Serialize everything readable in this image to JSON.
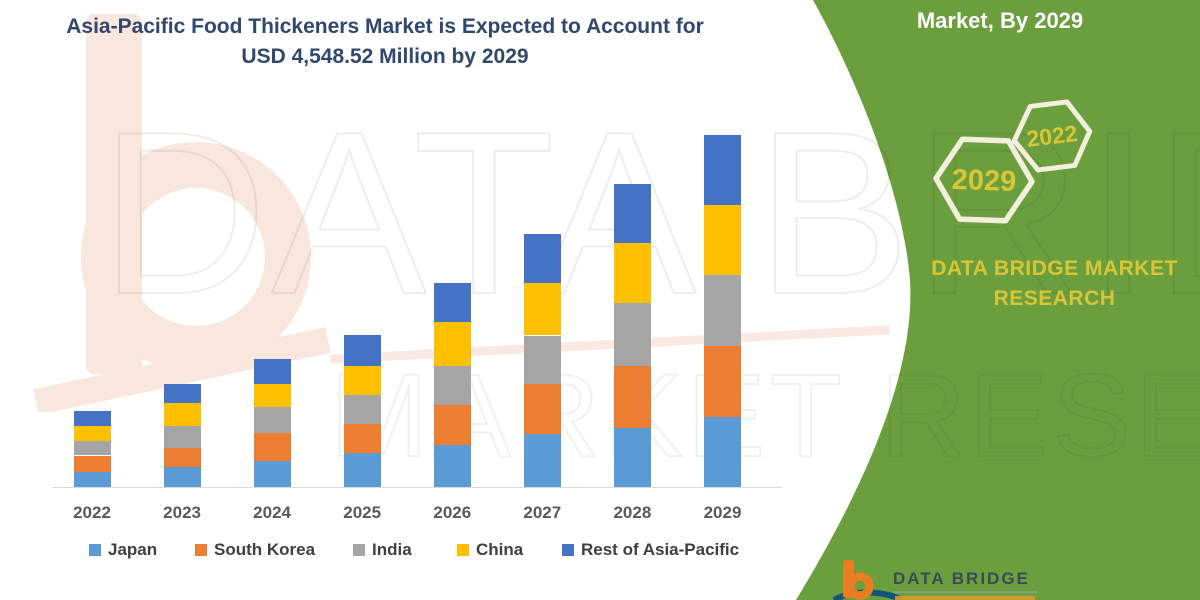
{
  "title": {
    "line1": "Asia-Pacific Food Thickeners Market is Expected to Account for",
    "line2": "USD 4,548.52 Million by 2029",
    "color": "#2F486B"
  },
  "right_panel": {
    "background_color": "#6B9F3D",
    "heading": "Market, By 2029",
    "hexagons": [
      {
        "label": "2029"
      },
      {
        "label": "2022"
      }
    ],
    "brand_line1": "DATA BRIDGE MARKET",
    "brand_line2": "RESEARCH",
    "accent_text_color": "#D9C637",
    "hex_outline_color": "#F2EFDC"
  },
  "watermark": {
    "line1": "DATA BRIDGE",
    "line2": "MARKET RESEARCH"
  },
  "footer_logo": {
    "brand": "DATA BRIDGE",
    "orange": "#E87E22",
    "navy": "#3A4A56"
  },
  "chart_data": {
    "type": "bar",
    "stacked": true,
    "title": "Asia-Pacific Food Thickeners Market is Expected to Account for USD 4,548.52 Million by 2029",
    "unit": "USD Million",
    "values_estimated": true,
    "categories": [
      "2022",
      "2023",
      "2024",
      "2025",
      "2026",
      "2027",
      "2028",
      "2029"
    ],
    "series": [
      {
        "name": "Japan",
        "color": "#5B9BD5",
        "values": [
          190,
          260,
          334,
          442,
          537,
          680,
          767,
          910
        ]
      },
      {
        "name": "South Korea",
        "color": "#ED7D31",
        "values": [
          217,
          247,
          360,
          368,
          520,
          650,
          801,
          910
        ]
      },
      {
        "name": "India",
        "color": "#A5A5A5",
        "values": [
          186,
          281,
          342,
          377,
          503,
          628,
          811,
          923
        ]
      },
      {
        "name": "China",
        "color": "#FFC000",
        "values": [
          195,
          295,
          295,
          373,
          572,
          681,
          780,
          897
        ]
      },
      {
        "name": "Rest of Asia-Pacific",
        "color": "#4472C4",
        "values": [
          195,
          247,
          329,
          407,
          503,
          632,
          758,
          908.52
        ]
      }
    ],
    "totals": [
      983,
      1330,
      1660,
      1967,
      2635,
      3271,
      3917,
      4548.52
    ],
    "annotations": [
      "2029 total stated in title as USD 4,548.52 Million"
    ],
    "xlabel": "",
    "ylabel": "",
    "y_axis_visible": false,
    "gridlines": false,
    "legend_position": "bottom"
  }
}
